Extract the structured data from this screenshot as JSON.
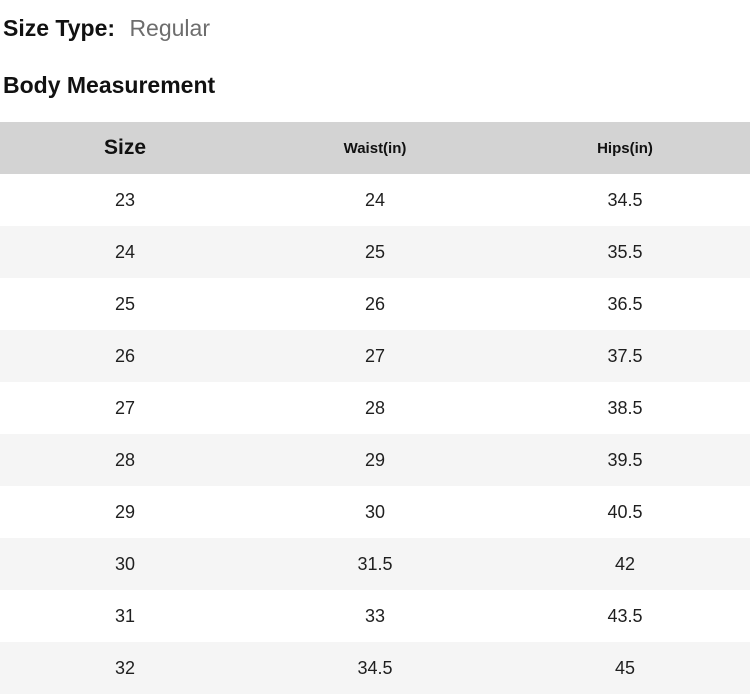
{
  "size_type": {
    "label": "Size Type:",
    "value": "Regular"
  },
  "section_title": "Body Measurement",
  "table": {
    "columns": [
      "Size",
      "Waist(in)",
      "Hips(in)"
    ],
    "rows": [
      [
        "23",
        "24",
        "34.5"
      ],
      [
        "24",
        "25",
        "35.5"
      ],
      [
        "25",
        "26",
        "36.5"
      ],
      [
        "26",
        "27",
        "37.5"
      ],
      [
        "27",
        "28",
        "38.5"
      ],
      [
        "28",
        "29",
        "39.5"
      ],
      [
        "29",
        "30",
        "40.5"
      ],
      [
        "30",
        "31.5",
        "42"
      ],
      [
        "31",
        "33",
        "43.5"
      ],
      [
        "32",
        "34.5",
        "45"
      ]
    ]
  },
  "colors": {
    "header_row_bg": "#d3d3d3",
    "alt_row_bg": "#f5f5f5",
    "row_bg": "#ffffff",
    "muted_text": "#6d6d6d",
    "text": "#111111"
  }
}
